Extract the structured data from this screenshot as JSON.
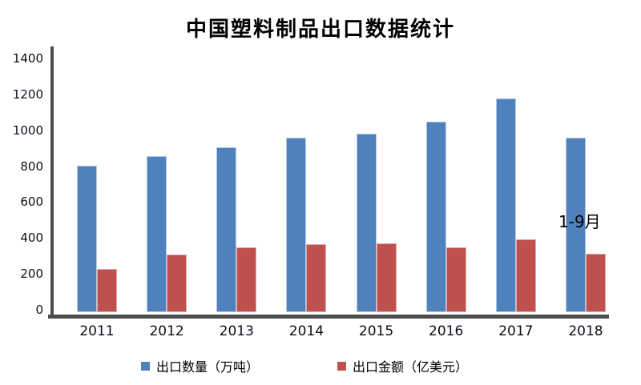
{
  "title": "中国塑料制品出口数据统计",
  "annotation": "1-9月",
  "colors": {
    "series1_fill": "#4f81bd",
    "series1_border": "#b5c8e2",
    "series2_fill": "#c0504d",
    "series2_border": "#e2aba9",
    "axis": "#4d4d4d",
    "tick_text": "#0d0d1a",
    "title_text": "#000000"
  },
  "chart_data": {
    "type": "bar",
    "title": "中国塑料制品出口数据统计",
    "categories": [
      "2011",
      "2012",
      "2013",
      "2014",
      "2015",
      "2016",
      "2017",
      "2018"
    ],
    "series": [
      {
        "name": "出口数量（万吨）",
        "color": "#4f81bd",
        "values": [
          800,
          855,
          900,
          955,
          975,
          1040,
          1170,
          955
        ]
      },
      {
        "name": "出口金额（亿美元）",
        "color": "#c0504d",
        "values": [
          235,
          315,
          355,
          370,
          375,
          355,
          400,
          320
        ]
      }
    ],
    "ylim": [
      0,
      1400
    ],
    "yticks": [
      0,
      200,
      400,
      600,
      800,
      1000,
      1200,
      1400
    ],
    "xlabel": "",
    "ylabel": "",
    "grid": false,
    "legend_position": "bottom",
    "annotation": {
      "text": "1-9月",
      "target": "2018",
      "note": "partial year Jan-Sep"
    }
  },
  "legend": {
    "item1": "出口数量（万吨）",
    "item2": "出口金额（亿美元）"
  }
}
